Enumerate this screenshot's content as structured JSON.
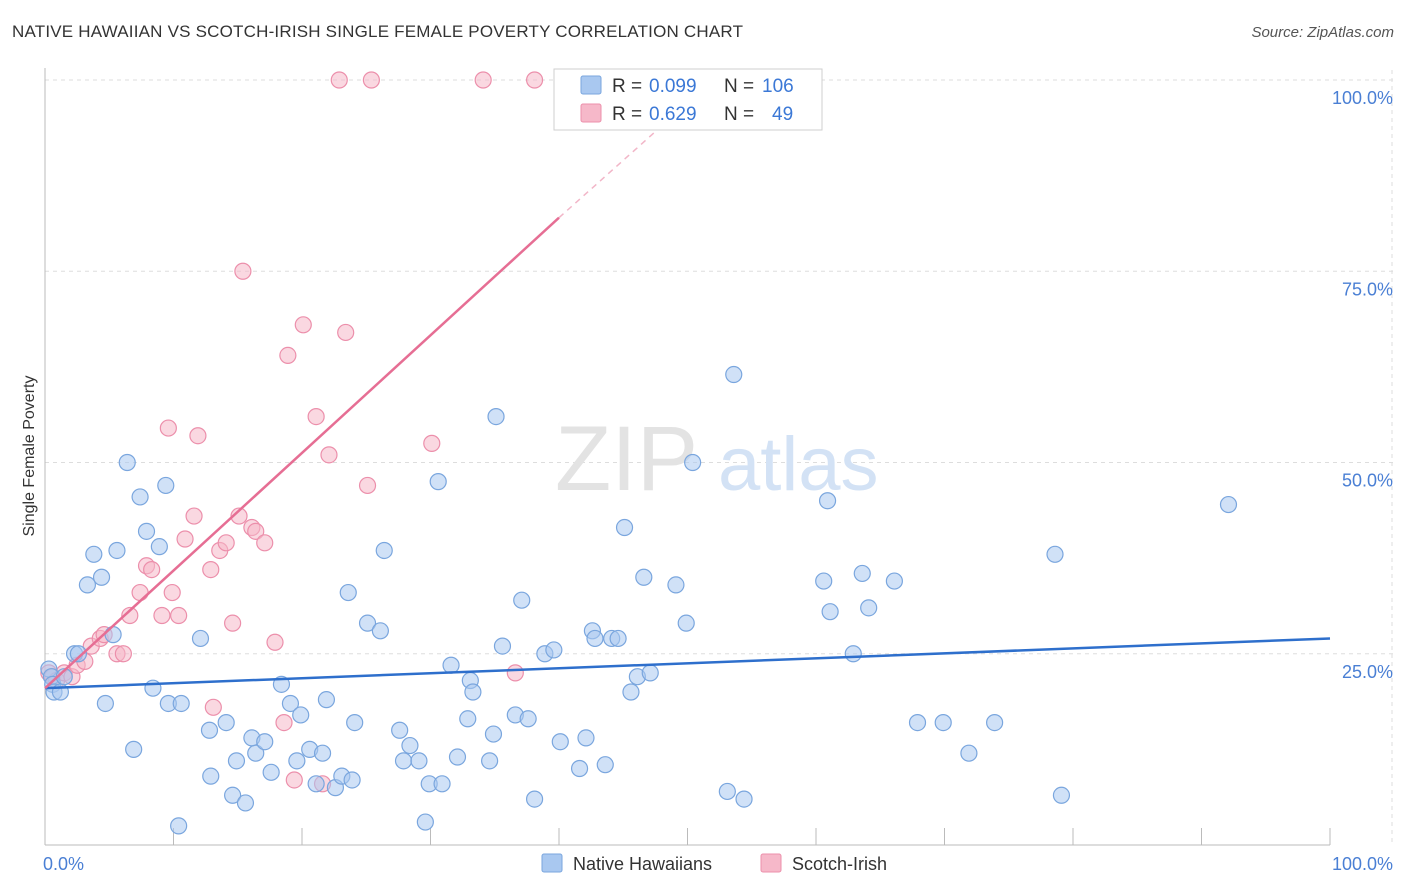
{
  "title": "NATIVE HAWAIIAN VS SCOTCH-IRISH SINGLE FEMALE POVERTY CORRELATION CHART",
  "source": "Source: ZipAtlas.com",
  "watermark": {
    "zip": "ZIP",
    "atlas": "atlas"
  },
  "colors": {
    "blue_fill": "#a9c8f0",
    "blue_stroke": "#7aa6de",
    "blue_line": "#2e6fcc",
    "pink_fill": "#f6b8c9",
    "pink_stroke": "#ec8fab",
    "pink_line": "#e66e94",
    "axis_text": "#4a7fd4",
    "grid": "#dddddd"
  },
  "legend": {
    "rows": [
      {
        "r_label": "R =",
        "r_value": "0.099",
        "n_label": "N =",
        "n_value": "106"
      },
      {
        "r_label": "R =",
        "r_value": "0.629",
        "n_label": "N =",
        "n_value": "49"
      }
    ]
  },
  "bottom_legend": [
    "Native Hawaiians",
    "Scotch-Irish"
  ],
  "chart_data": {
    "type": "scatter",
    "title": "NATIVE HAWAIIAN VS SCOTCH-IRISH SINGLE FEMALE POVERTY CORRELATION CHART",
    "xlabel": "",
    "ylabel": "Single Female Poverty",
    "xlim": [
      0,
      100
    ],
    "ylim": [
      0,
      100
    ],
    "x_tick_labels": [
      "0.0%",
      "100.0%"
    ],
    "y_ticks": [
      25,
      50,
      75,
      100
    ],
    "y_tick_labels": [
      "25.0%",
      "50.0%",
      "75.0%",
      "100.0%"
    ],
    "grid": true,
    "legend_position": "top-center",
    "series": [
      {
        "name": "Native Hawaiians",
        "r": 0.099,
        "n": 106,
        "trend": {
          "x0": 0,
          "y0": 20.5,
          "x1": 100,
          "y1": 27.0
        },
        "points": [
          [
            0.3,
            23
          ],
          [
            0.5,
            22
          ],
          [
            0.6,
            21
          ],
          [
            0.7,
            20
          ],
          [
            1.2,
            20
          ],
          [
            1.5,
            22
          ],
          [
            2.3,
            25
          ],
          [
            2.6,
            25
          ],
          [
            3.3,
            34
          ],
          [
            3.8,
            38
          ],
          [
            4.4,
            35
          ],
          [
            4.7,
            18.5
          ],
          [
            5.3,
            27.5
          ],
          [
            5.6,
            38.5
          ],
          [
            6.4,
            50
          ],
          [
            6.9,
            12.5
          ],
          [
            7.4,
            45.5
          ],
          [
            7.9,
            41
          ],
          [
            8.4,
            20.5
          ],
          [
            8.9,
            39
          ],
          [
            9.4,
            47
          ],
          [
            9.6,
            18.5
          ],
          [
            10.6,
            18.5
          ],
          [
            10.4,
            2.5
          ],
          [
            12.1,
            27
          ],
          [
            12.8,
            15
          ],
          [
            12.9,
            9
          ],
          [
            14.1,
            16
          ],
          [
            14.6,
            6.5
          ],
          [
            14.9,
            11
          ],
          [
            15.6,
            5.5
          ],
          [
            16.1,
            14
          ],
          [
            16.4,
            12
          ],
          [
            17.1,
            13.5
          ],
          [
            17.6,
            9.5
          ],
          [
            18.4,
            21
          ],
          [
            19.1,
            18.5
          ],
          [
            19.6,
            11
          ],
          [
            19.9,
            17
          ],
          [
            20.6,
            12.5
          ],
          [
            21.1,
            8
          ],
          [
            21.6,
            12
          ],
          [
            21.9,
            19
          ],
          [
            22.6,
            7.5
          ],
          [
            23.1,
            9
          ],
          [
            23.6,
            33
          ],
          [
            23.9,
            8.5
          ],
          [
            24.1,
            16
          ],
          [
            25.1,
            29
          ],
          [
            26.1,
            28
          ],
          [
            26.4,
            38.5
          ],
          [
            27.6,
            15
          ],
          [
            27.9,
            11
          ],
          [
            28.4,
            13
          ],
          [
            29.1,
            11
          ],
          [
            29.6,
            3
          ],
          [
            29.9,
            8
          ],
          [
            30.6,
            47.5
          ],
          [
            30.9,
            8
          ],
          [
            31.6,
            23.5
          ],
          [
            32.1,
            11.5
          ],
          [
            32.9,
            16.5
          ],
          [
            33.1,
            21.5
          ],
          [
            33.3,
            20
          ],
          [
            34.9,
            14.5
          ],
          [
            34.6,
            11
          ],
          [
            35.1,
            56
          ],
          [
            35.6,
            26
          ],
          [
            36.6,
            17
          ],
          [
            37.1,
            32
          ],
          [
            37.6,
            16.5
          ],
          [
            38.1,
            6
          ],
          [
            38.9,
            25
          ],
          [
            39.6,
            25.5
          ],
          [
            40.1,
            13.5
          ],
          [
            41.6,
            10
          ],
          [
            42.1,
            14
          ],
          [
            42.6,
            28
          ],
          [
            42.8,
            27
          ],
          [
            43.6,
            10.5
          ],
          [
            44.1,
            27
          ],
          [
            44.6,
            27
          ],
          [
            45.1,
            41.5
          ],
          [
            45.6,
            20
          ],
          [
            46.1,
            22
          ],
          [
            46.6,
            35
          ],
          [
            47.1,
            22.5
          ],
          [
            49.1,
            34
          ],
          [
            49.9,
            29
          ],
          [
            50.4,
            50
          ],
          [
            53.1,
            7
          ],
          [
            53.6,
            61.5
          ],
          [
            54.4,
            6
          ],
          [
            60.6,
            34.5
          ],
          [
            60.9,
            45
          ],
          [
            61.1,
            30.5
          ],
          [
            62.9,
            25
          ],
          [
            63.6,
            35.5
          ],
          [
            64.1,
            31
          ],
          [
            66.1,
            34.5
          ],
          [
            67.9,
            16
          ],
          [
            69.9,
            16
          ],
          [
            71.9,
            12
          ],
          [
            73.9,
            16
          ],
          [
            78.6,
            38
          ],
          [
            79.1,
            6.5
          ],
          [
            92.1,
            44.5
          ]
        ]
      },
      {
        "name": "Scotch-Irish",
        "r": 0.629,
        "n": 49,
        "trend": {
          "x0": 0,
          "y0": 20.5,
          "x1": 40,
          "y1": 82
        },
        "trend_dashed": {
          "x0": 40,
          "y0": 82,
          "x1": 48,
          "y1": 94
        },
        "points": [
          [
            0.3,
            22.5
          ],
          [
            0.6,
            22
          ],
          [
            0.9,
            21.5
          ],
          [
            1.5,
            22.5
          ],
          [
            2.1,
            22
          ],
          [
            2.5,
            23.5
          ],
          [
            3.1,
            24
          ],
          [
            3.6,
            26
          ],
          [
            4.3,
            27
          ],
          [
            4.6,
            27.5
          ],
          [
            5.6,
            25
          ],
          [
            6.1,
            25
          ],
          [
            6.6,
            30
          ],
          [
            7.4,
            33
          ],
          [
            7.9,
            36.5
          ],
          [
            8.3,
            36
          ],
          [
            9.1,
            30
          ],
          [
            9.6,
            54.5
          ],
          [
            9.9,
            33
          ],
          [
            10.4,
            30
          ],
          [
            10.9,
            40
          ],
          [
            11.6,
            43
          ],
          [
            11.9,
            53.5
          ],
          [
            12.9,
            36
          ],
          [
            13.1,
            18
          ],
          [
            13.6,
            38.5
          ],
          [
            14.1,
            39.5
          ],
          [
            14.6,
            29
          ],
          [
            15.1,
            43
          ],
          [
            15.4,
            75
          ],
          [
            16.1,
            41.5
          ],
          [
            16.4,
            41
          ],
          [
            17.1,
            39.5
          ],
          [
            17.9,
            26.5
          ],
          [
            18.6,
            16
          ],
          [
            18.9,
            64
          ],
          [
            20.1,
            68
          ],
          [
            21.1,
            56
          ],
          [
            21.6,
            8
          ],
          [
            22.1,
            51
          ],
          [
            22.9,
            100
          ],
          [
            23.4,
            67
          ],
          [
            25.4,
            100
          ],
          [
            25.1,
            47
          ],
          [
            30.1,
            52.5
          ],
          [
            34.1,
            100
          ],
          [
            36.6,
            22.5
          ],
          [
            38.1,
            100
          ],
          [
            19.4,
            8.5
          ]
        ]
      }
    ]
  }
}
